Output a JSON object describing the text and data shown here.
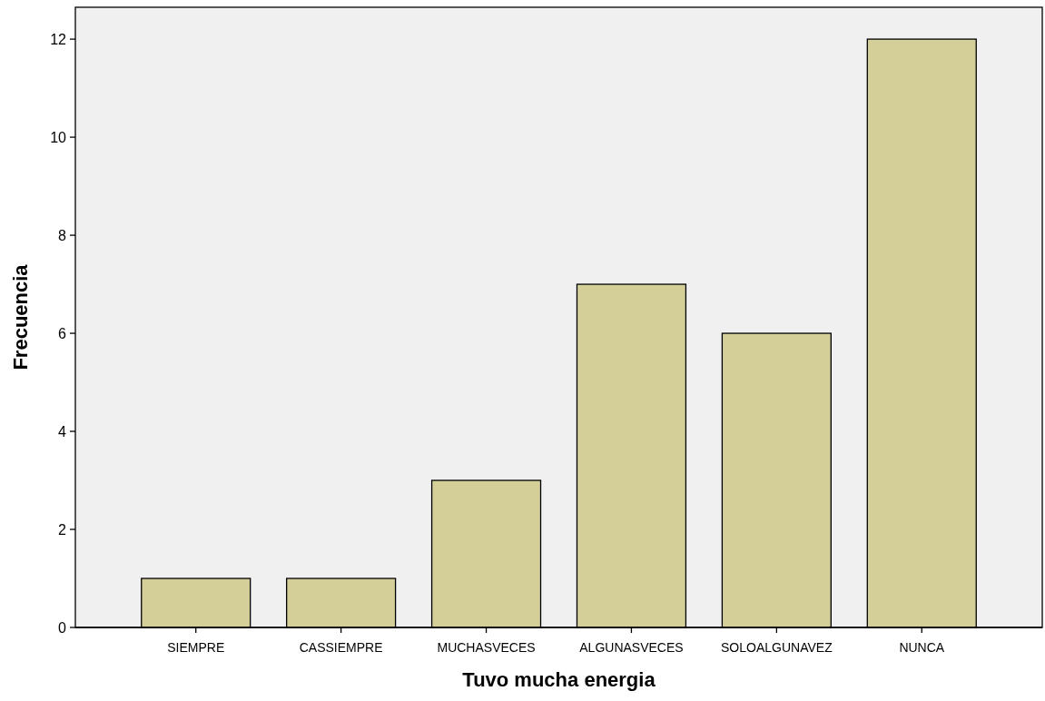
{
  "chart_data": {
    "type": "bar",
    "xlabel": "Tuvo mucha energia",
    "ylabel": "Frecuencia",
    "categories": [
      "SIEMPRE",
      "CASSIEMPRE",
      "MUCHASVECES",
      "ALGUNASVECES",
      "SOLOALGUNAVEZ",
      "NUNCA"
    ],
    "values": [
      1,
      1,
      3,
      7,
      6,
      12
    ],
    "color": "#d4cf98",
    "ylim": [
      0,
      12.65
    ],
    "yticks": [
      0,
      2,
      4,
      6,
      8,
      10,
      12
    ],
    "grid": false
  }
}
